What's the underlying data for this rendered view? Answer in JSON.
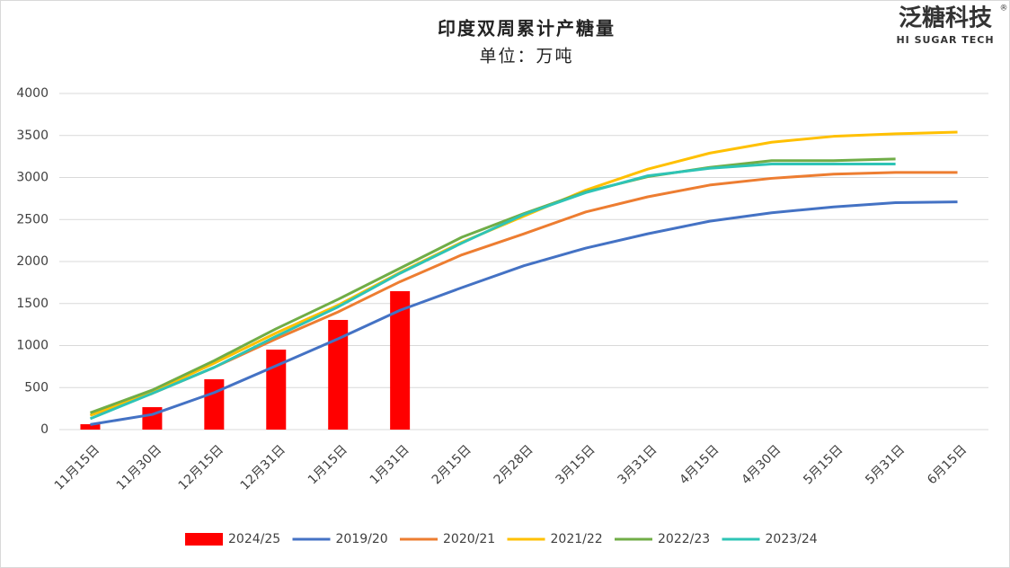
{
  "chart_data": {
    "type": "combo",
    "title": "印度双周累计产糖量",
    "subtitle": "单位：万吨",
    "logo": {
      "name": "泛糖科技",
      "english": "HI SUGAR TECH",
      "mark": "®"
    },
    "categories": [
      "11月15日",
      "11月30日",
      "12月15日",
      "12月31日",
      "1月15日",
      "1月31日",
      "2月15日",
      "2月28日",
      "3月15日",
      "3月31日",
      "4月15日",
      "4月30日",
      "5月15日",
      "5月31日",
      "6月15日"
    ],
    "ylim": [
      0,
      4000
    ],
    "yticks": [
      0,
      500,
      1000,
      1500,
      2000,
      2500,
      3000,
      3500,
      4000
    ],
    "grid": true,
    "legend": "bottom",
    "series": [
      {
        "name": "2024/25",
        "type": "bar",
        "color": "#ff0000",
        "values": [
          64,
          267,
          599,
          952,
          1305,
          1647,
          null,
          null,
          null,
          null,
          null,
          null,
          null,
          null,
          null
        ]
      },
      {
        "name": "2019/20",
        "type": "line",
        "color": "#4472c4",
        "values": [
          60,
          180,
          440,
          760,
          1080,
          1420,
          1690,
          1950,
          2160,
          2330,
          2480,
          2580,
          2650,
          2700,
          2710
        ]
      },
      {
        "name": "2020/21",
        "type": "line",
        "color": "#ed7d31",
        "values": [
          170,
          430,
          740,
          1080,
          1400,
          1760,
          2080,
          2330,
          2590,
          2770,
          2910,
          2990,
          3040,
          3060,
          3060
        ]
      },
      {
        "name": "2021/22",
        "type": "line",
        "color": "#ffc000",
        "values": [
          170,
          450,
          790,
          1150,
          1480,
          1870,
          2230,
          2540,
          2850,
          3100,
          3290,
          3420,
          3490,
          3520,
          3540
        ]
      },
      {
        "name": "2022/23",
        "type": "line",
        "color": "#70ad47",
        "values": [
          200,
          470,
          820,
          1200,
          1550,
          1920,
          2290,
          2570,
          2830,
          3010,
          3120,
          3200,
          3200,
          3220,
          null
        ]
      },
      {
        "name": "2023/24",
        "type": "line",
        "color": "#2ec4b6",
        "values": [
          130,
          430,
          740,
          1110,
          1460,
          1860,
          2220,
          2560,
          2820,
          3020,
          3110,
          3160,
          3160,
          3160,
          null
        ]
      }
    ]
  }
}
